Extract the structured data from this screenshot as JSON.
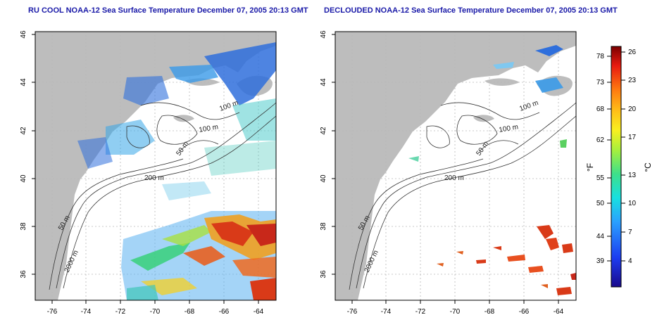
{
  "panels": [
    {
      "title": "RU COOL NOAA-12 Sea Surface Temperature December 07, 2005 20:13 GMT",
      "contour_labels": [
        "100 m",
        "100 m",
        "50 m",
        "200 m",
        "50 m",
        "2000 m"
      ]
    },
    {
      "title": "DECLOUDED NOAA-12 Sea Surface Temperature December 07, 2005 20:13 GMT",
      "contour_labels": [
        "100 m",
        "100 m",
        "50 m",
        "200 m",
        "50 m",
        "2000 m"
      ]
    }
  ],
  "axes": {
    "lat_ticks": [
      "36",
      "38",
      "40",
      "42",
      "44",
      "46"
    ],
    "lon_ticks": [
      "-76",
      "-74",
      "-72",
      "-70",
      "-68",
      "-66",
      "-64"
    ]
  },
  "colorbar": {
    "f_label": "°F",
    "c_label": "°C",
    "f_ticks": [
      "78",
      "73",
      "68",
      "62",
      "55",
      "50",
      "44",
      "39"
    ],
    "c_ticks": [
      "26",
      "23",
      "20",
      "17",
      "13",
      "10",
      "7",
      "4"
    ]
  },
  "colors": {
    "land": "#bdbdbd",
    "title": "#1a1aa8",
    "warm": "#d93a18",
    "cool": "#2f6fdc"
  }
}
